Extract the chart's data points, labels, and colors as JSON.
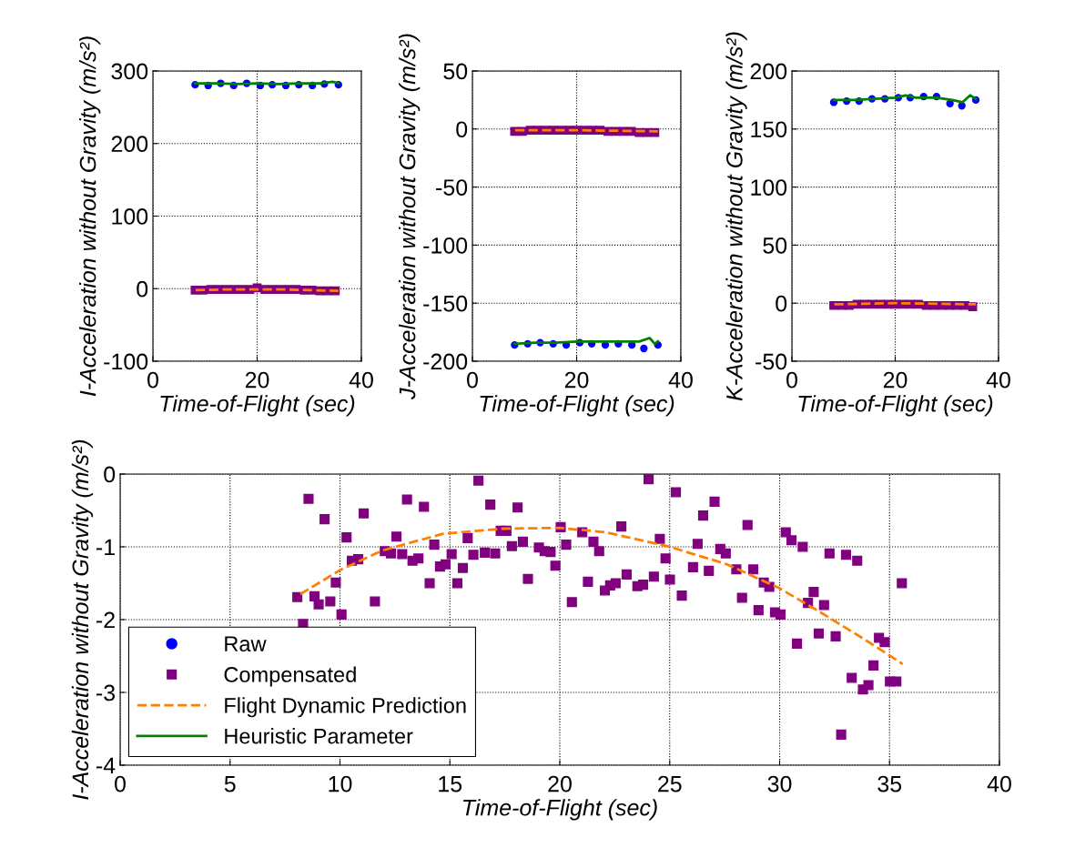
{
  "chart_data": [
    {
      "type": "scatter",
      "xlabel": "Time-of-Flight (sec)",
      "ylabel": "I-Acceleration without Gravity (m/s²)",
      "xlim": [
        0,
        40
      ],
      "xticks": [
        0,
        20,
        40
      ],
      "ylim": [
        -100,
        300
      ],
      "yticks": [
        -100,
        0,
        100,
        200,
        300
      ],
      "grid": true,
      "legend": false,
      "series": [
        {
          "marker": "circle",
          "color": "#0000ff",
          "x": [
            8.1,
            10.6,
            13.0,
            15.5,
            18.0,
            20.6,
            22.9,
            25.5,
            28.0,
            30.6,
            32.9,
            35.6
          ],
          "values": [
            281,
            280,
            283,
            280,
            283,
            280,
            281,
            280,
            281,
            280,
            282,
            281
          ]
        },
        {
          "type": "scatter",
          "marker": "square",
          "color": "#800080",
          "x": [
            8.1,
            9.6,
            11.1,
            12.6,
            14.1,
            15.6,
            17.1,
            18.6,
            20.0,
            21.5,
            23.0,
            24.5,
            26.0,
            27.5,
            29.0,
            30.5,
            32.0,
            33.5,
            35.0
          ],
          "values": [
            -2,
            -2,
            -1,
            -1,
            -1,
            -1,
            -1,
            -1,
            1,
            -1,
            -1,
            -1,
            -1,
            -1,
            -2,
            -2,
            -3,
            -3,
            -3
          ]
        },
        {
          "type": "line",
          "line_style": "dashed",
          "marker": "none",
          "color": "#ff8000",
          "x": [
            8.2,
            14.7,
            20.0,
            25.0,
            30.0,
            35.6
          ],
          "values": [
            -2,
            -1,
            -1,
            -1,
            -2,
            -3
          ]
        },
        {
          "type": "line",
          "line_style": "solid",
          "marker": "none",
          "color": "#008000",
          "x": [
            8.1,
            12.0,
            16.0,
            20.0,
            24.0,
            28.0,
            32.0,
            34.5,
            35.6
          ],
          "values": [
            283,
            283,
            282,
            283,
            282,
            283,
            283,
            285,
            283
          ]
        }
      ]
    },
    {
      "type": "scatter",
      "xlabel": "Time-of-Flight (sec)",
      "ylabel": "J-Acceleration without Gravity (m/s²)",
      "xlim": [
        0,
        40
      ],
      "xticks": [
        0,
        20,
        40
      ],
      "ylim": [
        -200,
        50
      ],
      "yticks": [
        -200,
        -150,
        -100,
        -50,
        0,
        50
      ],
      "grid": true,
      "legend": false,
      "series": [
        {
          "marker": "circle",
          "color": "#0000ff",
          "x": [
            8.1,
            10.6,
            13.0,
            15.5,
            18.0,
            20.6,
            22.9,
            25.5,
            28.0,
            30.6,
            32.9,
            35.6
          ],
          "values": [
            -186,
            -185,
            -184,
            -185,
            -186,
            -184,
            -185,
            -186,
            -185,
            -186,
            -189,
            -186
          ]
        },
        {
          "type": "scatter",
          "marker": "square",
          "color": "#800080",
          "x": [
            8.1,
            9.6,
            11.1,
            12.6,
            14.1,
            15.6,
            17.1,
            18.6,
            20.0,
            21.5,
            23.0,
            24.5,
            26.0,
            27.5,
            29.0,
            30.5,
            32.0,
            33.5,
            35.0
          ],
          "values": [
            -2,
            -2,
            -1,
            -1,
            -1,
            -1,
            -1,
            -1,
            -1,
            -1,
            -1,
            -1,
            -2,
            -2,
            -2,
            -2,
            -3,
            -3,
            -3
          ]
        },
        {
          "type": "line",
          "line_style": "dashed",
          "marker": "none",
          "color": "#ff8000",
          "x": [
            8.2,
            20.0,
            35.6
          ],
          "values": [
            -1,
            -1,
            -2
          ]
        },
        {
          "type": "line",
          "line_style": "solid",
          "marker": "none",
          "color": "#008000",
          "x": [
            8.1,
            12.0,
            16.0,
            20.0,
            24.0,
            28.0,
            32.0,
            34.0,
            35.0,
            35.6
          ],
          "values": [
            -185,
            -184,
            -184,
            -183,
            -183,
            -183,
            -183,
            -180,
            -185,
            -183
          ]
        }
      ]
    },
    {
      "type": "scatter",
      "xlabel": "Time-of-Flight (sec)",
      "ylabel": "K-Acceleration without Gravity (m/s²)",
      "xlim": [
        0,
        40
      ],
      "xticks": [
        0,
        20,
        40
      ],
      "ylim": [
        -50,
        200
      ],
      "yticks": [
        -50,
        0,
        50,
        100,
        150,
        200
      ],
      "grid": true,
      "legend": false,
      "series": [
        {
          "marker": "circle",
          "color": "#0000ff",
          "x": [
            8.1,
            10.6,
            13.0,
            15.5,
            18.0,
            20.6,
            22.9,
            25.5,
            28.0,
            30.6,
            32.9,
            35.6
          ],
          "values": [
            173,
            174,
            174,
            176,
            176,
            177,
            177,
            178,
            178,
            172,
            170,
            175
          ]
        },
        {
          "type": "scatter",
          "marker": "square",
          "color": "#800080",
          "x": [
            8.1,
            9.6,
            11.1,
            12.6,
            14.1,
            15.6,
            17.1,
            18.6,
            20.0,
            21.5,
            23.0,
            24.5,
            26.0,
            27.5,
            29.0,
            30.5,
            32.0,
            33.5,
            35.0
          ],
          "values": [
            -2,
            -2,
            -2,
            -1,
            -1,
            -1,
            -1,
            -1,
            -1,
            -1,
            -1,
            -1,
            -2,
            -2,
            -2,
            -2,
            -2,
            -2,
            -3
          ]
        },
        {
          "type": "line",
          "line_style": "dashed",
          "marker": "none",
          "color": "#ff8000",
          "x": [
            8.2,
            20.0,
            35.6
          ],
          "values": [
            -1,
            0,
            -1
          ]
        },
        {
          "type": "line",
          "line_style": "solid",
          "marker": "none",
          "color": "#008000",
          "x": [
            8.1,
            12.0,
            16.0,
            20.0,
            22.0,
            24.0,
            28.0,
            31.0,
            33.0,
            34.5,
            35.6
          ],
          "values": [
            175,
            175,
            176,
            177,
            179,
            177,
            177,
            175,
            173,
            179,
            176
          ]
        }
      ]
    },
    {
      "type": "scatter",
      "xlabel": "Time-of-Flight (sec)",
      "ylabel": "I-Acceleration without Gravity (m/s²)",
      "xlim": [
        0,
        40
      ],
      "xticks": [
        0,
        5,
        10,
        15,
        20,
        25,
        30,
        35,
        40
      ],
      "ylim": [
        -4,
        0
      ],
      "yticks": [
        -4,
        -3,
        -2,
        -1,
        0
      ],
      "grid": true,
      "legend": "bottom left",
      "series": [
        {
          "name": "Raw",
          "marker": "circle",
          "color": "#0000ff"
        },
        {
          "name": "Compensated",
          "marker": "square",
          "color": "#800080",
          "x": [
            8.06,
            8.32,
            8.57,
            8.84,
            9.03,
            9.3,
            9.56,
            9.81,
            10.07,
            10.3,
            10.54,
            10.83,
            11.08,
            11.59,
            12.04,
            12.32,
            12.57,
            12.83,
            13.05,
            13.3,
            13.57,
            13.82,
            14.08,
            14.29,
            14.55,
            14.8,
            15.08,
            15.34,
            15.59,
            15.81,
            16.07,
            16.3,
            16.59,
            16.84,
            17.06,
            17.31,
            17.57,
            17.82,
            18.08,
            18.32,
            18.55,
            19.05,
            19.31,
            19.58,
            19.8,
            20.04,
            20.29,
            20.55,
            21.02,
            21.28,
            21.53,
            21.79,
            22.05,
            22.29,
            22.54,
            22.8,
            23.04,
            23.53,
            23.79,
            24.04,
            24.28,
            24.55,
            24.81,
            25.01,
            25.28,
            25.55,
            26.06,
            26.27,
            26.52,
            26.78,
            27.04,
            27.3,
            27.55,
            28.03,
            28.29,
            28.54,
            28.8,
            29.04,
            29.28,
            29.53,
            29.79,
            30.04,
            30.28,
            30.54,
            30.79,
            31.05,
            31.29,
            31.55,
            31.78,
            32.02,
            32.27,
            32.55,
            32.8,
            33.02,
            33.28,
            33.53,
            33.79,
            34.04,
            34.27,
            34.52,
            34.78,
            35.02,
            35.31,
            35.56
          ],
          "values": [
            -1.69,
            -2.06,
            -0.34,
            -1.68,
            -1.79,
            -0.62,
            -1.75,
            -1.49,
            -1.93,
            -0.87,
            -1.19,
            -1.17,
            -0.54,
            -1.75,
            -1.06,
            -1.09,
            -0.86,
            -1.1,
            -0.35,
            -1.19,
            -1.16,
            -0.45,
            -1.5,
            -0.97,
            -1.27,
            -1.24,
            -1.1,
            -1.5,
            -1.29,
            -0.88,
            -1.11,
            -0.09,
            -1.08,
            -0.42,
            -1.09,
            -0.78,
            -0.78,
            -0.99,
            -0.46,
            -0.93,
            -1.44,
            -1.01,
            -1.06,
            -1.07,
            -1.26,
            -0.73,
            -0.97,
            -1.76,
            -0.8,
            -1.48,
            -0.93,
            -1.06,
            -1.6,
            -1.53,
            -1.5,
            -0.72,
            -1.38,
            -1.54,
            -1.52,
            -0.07,
            -1.41,
            -0.89,
            -1.16,
            -1.45,
            -0.25,
            -1.67,
            -1.28,
            -0.96,
            -0.57,
            -1.33,
            -0.38,
            -1.03,
            -1.09,
            -1.31,
            -1.7,
            -0.7,
            -1.31,
            -1.87,
            -1.49,
            -1.55,
            -1.9,
            -1.93,
            -0.8,
            -0.91,
            -2.33,
            -1.0,
            -1.77,
            -1.62,
            -2.19,
            -1.8,
            -1.09,
            -2.23,
            -3.58,
            -1.11,
            -2.8,
            -1.19,
            -2.96,
            -2.9,
            -2.63,
            -2.25,
            -2.31,
            -2.85,
            -2.85,
            -1.5
          ]
        },
        {
          "name": "Flight Dynamic Prediction",
          "type": "line",
          "line_style": "dashed",
          "marker": "none",
          "color": "#ff8000",
          "x": [
            8.2,
            10.0,
            11.93,
            14.69,
            17.45,
            20.0,
            22.1,
            25.0,
            27.6,
            30.0,
            31.75,
            33.8,
            35.6
          ],
          "values": [
            -1.65,
            -1.32,
            -1.05,
            -0.82,
            -0.75,
            -0.74,
            -0.8,
            -1.0,
            -1.24,
            -1.57,
            -1.88,
            -2.26,
            -2.61
          ]
        },
        {
          "name": "Heuristic Parameter",
          "type": "line",
          "line_style": "solid",
          "marker": "none",
          "color": "#008000"
        }
      ]
    }
  ]
}
